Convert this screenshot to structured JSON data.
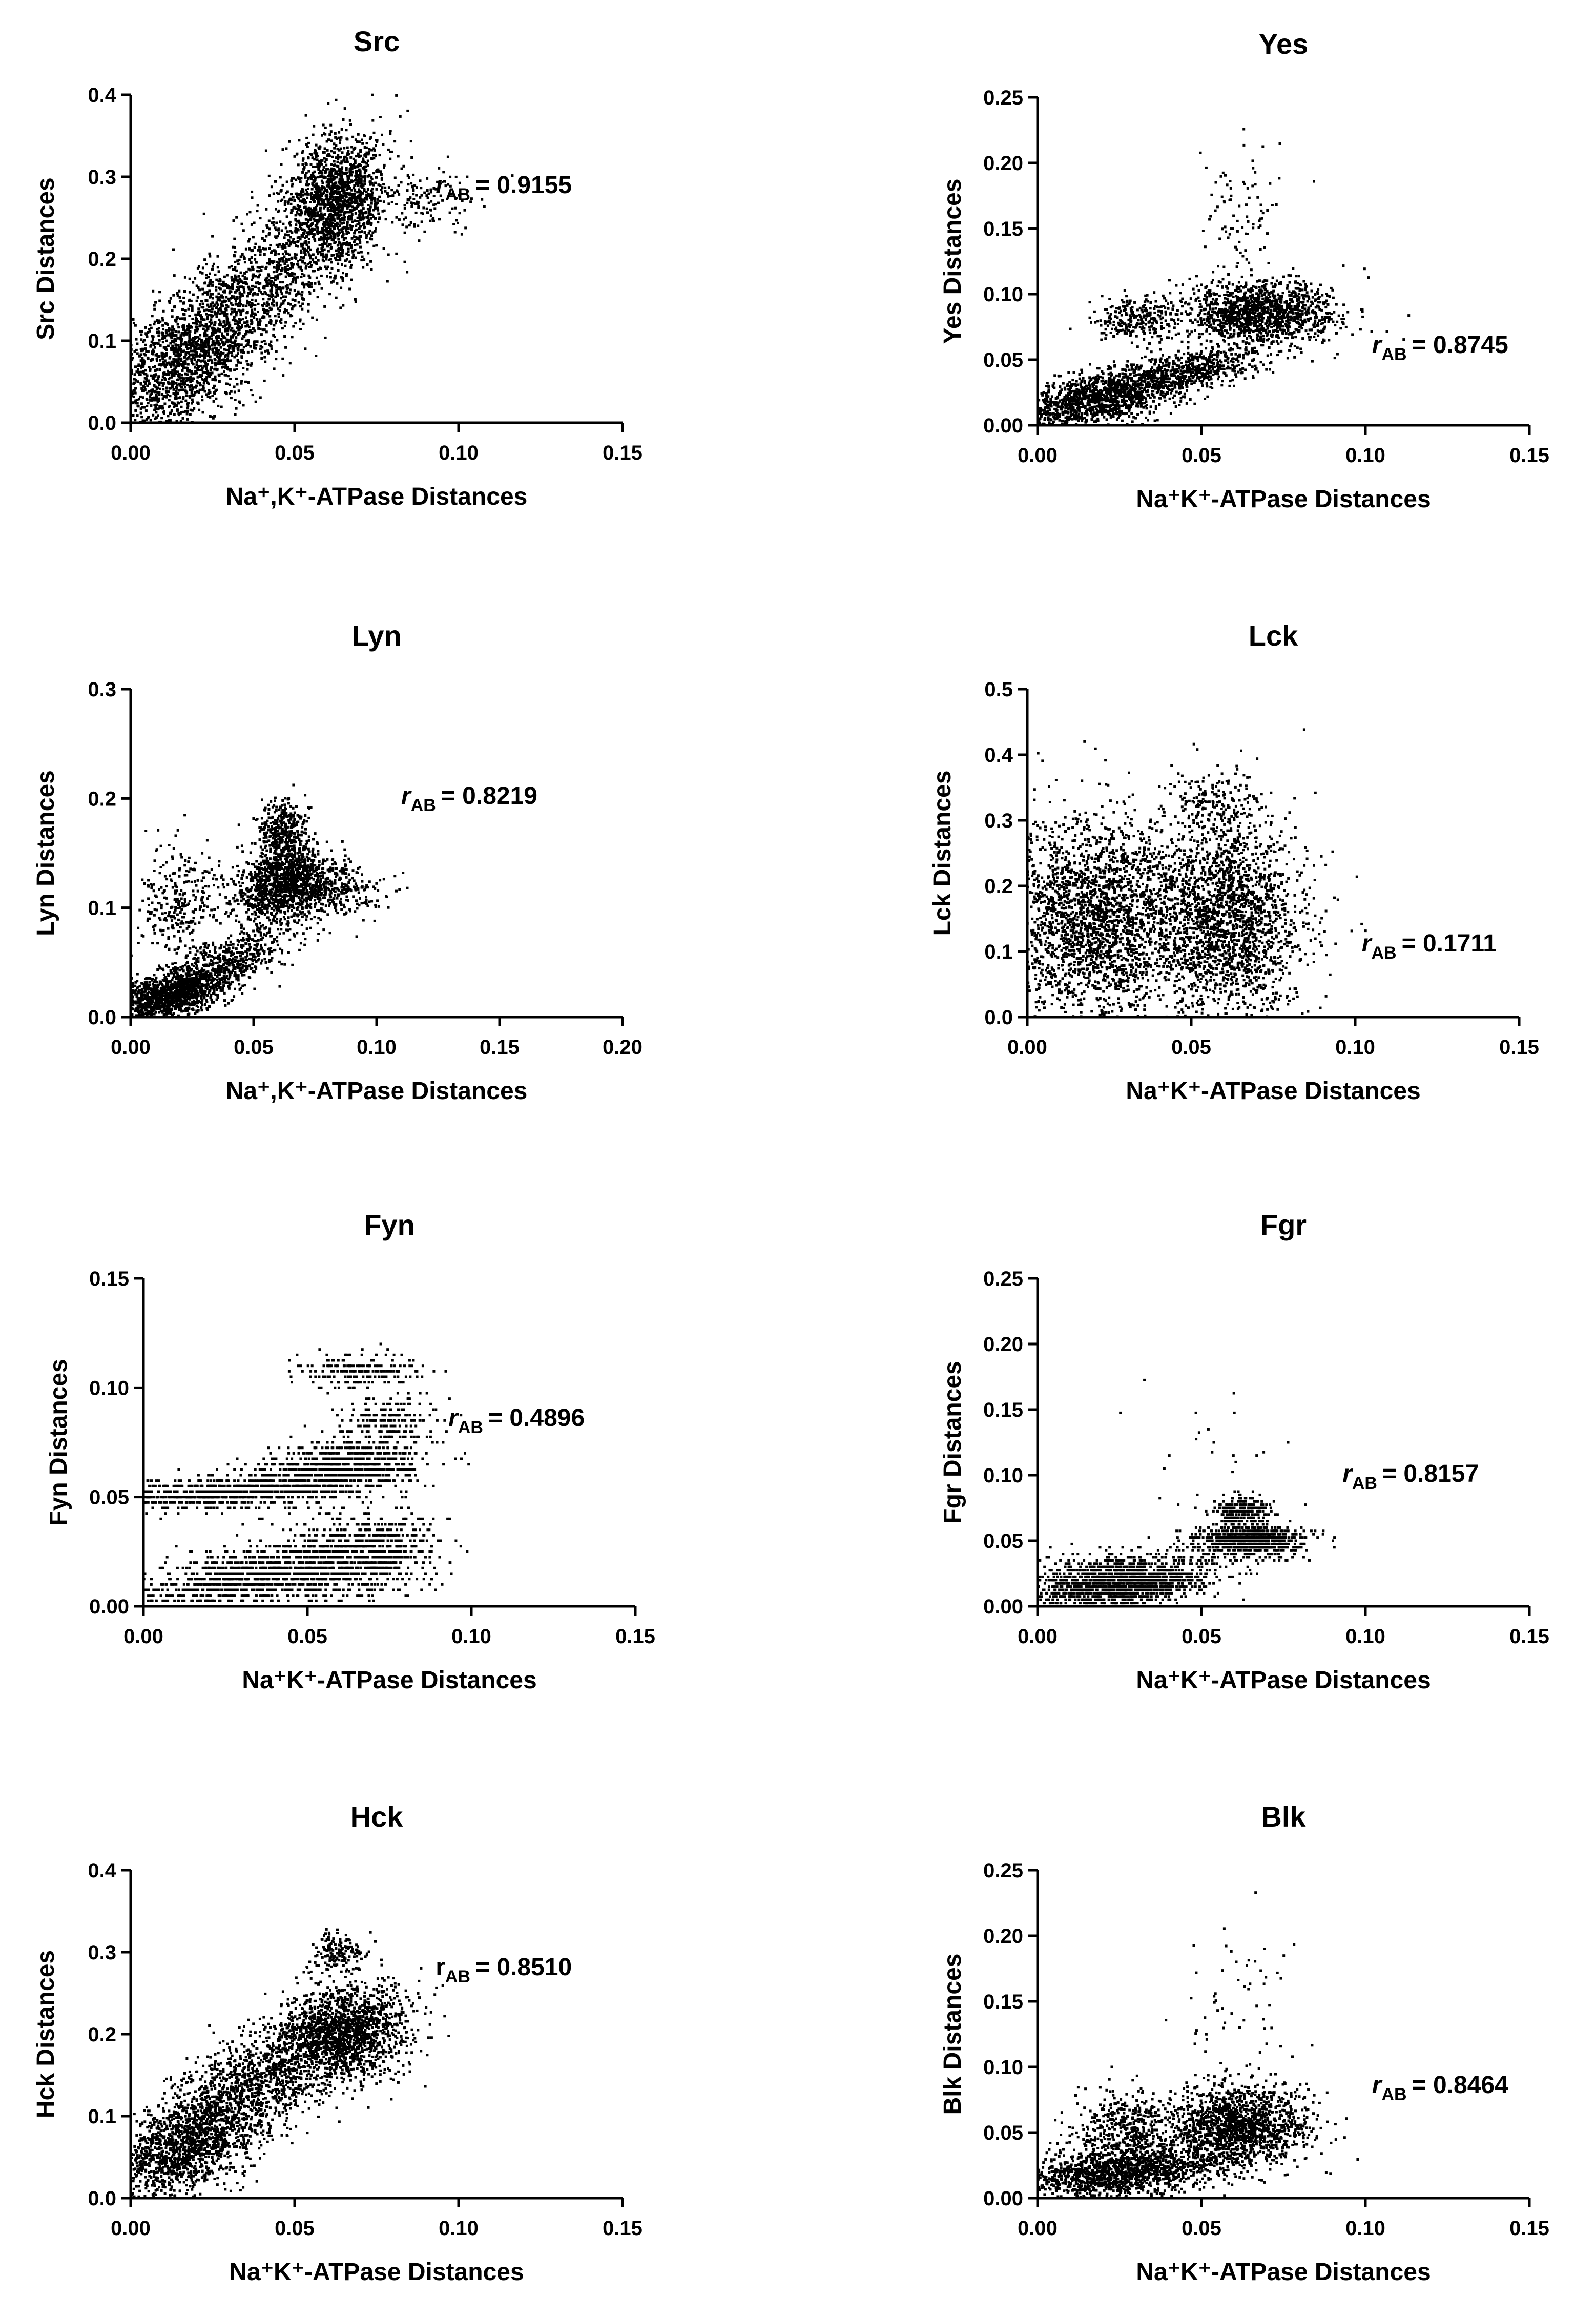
{
  "chart_data": [
    {
      "type": "scatter",
      "title": "Src",
      "xlabel": "Na⁺,K⁺-ATPase Distances",
      "ylabel": "Src Distances",
      "xlim": [
        0,
        0.15
      ],
      "ylim": [
        0,
        0.4
      ],
      "xticks": [
        "0.00",
        "0.05",
        "0.10",
        "0.15"
      ],
      "yticks": [
        "0.0",
        "0.1",
        "0.2",
        "0.3",
        "0.4"
      ],
      "correlation": {
        "symbol": "r",
        "subscript": "AB",
        "value": "= 0.9155",
        "italic": true
      },
      "grid": false,
      "clusters": [
        {
          "cx": 0.018,
          "cy": 0.08,
          "sx": 0.014,
          "sy": 0.05,
          "n": 1800,
          "corr": 0.6
        },
        {
          "cx": 0.04,
          "cy": 0.17,
          "sx": 0.012,
          "sy": 0.04,
          "n": 600,
          "corr": 0.5
        },
        {
          "cx": 0.062,
          "cy": 0.27,
          "sx": 0.008,
          "sy": 0.04,
          "n": 1600,
          "corr": 0.2
        },
        {
          "cx": 0.09,
          "cy": 0.27,
          "sx": 0.008,
          "sy": 0.02,
          "n": 120,
          "corr": 0
        }
      ]
    },
    {
      "type": "scatter",
      "title": "Yes",
      "xlabel": "Na⁺K⁺-ATPase Distances",
      "ylabel": "Yes Distances",
      "xlim": [
        0,
        0.15
      ],
      "ylim": [
        0,
        0.25
      ],
      "xticks": [
        "0.00",
        "0.05",
        "0.10",
        "0.15"
      ],
      "yticks": [
        "0.00",
        "0.05",
        "0.10",
        "0.15",
        "0.20",
        "0.25"
      ],
      "correlation": {
        "symbol": "r",
        "subscript": "AB",
        "value": "= 0.8745",
        "italic": true
      },
      "grid": false,
      "clusters": [
        {
          "cx": 0.018,
          "cy": 0.02,
          "sx": 0.012,
          "sy": 0.012,
          "n": 1200,
          "corr": 0.5
        },
        {
          "cx": 0.045,
          "cy": 0.04,
          "sx": 0.012,
          "sy": 0.01,
          "n": 600,
          "corr": 0.6
        },
        {
          "cx": 0.03,
          "cy": 0.08,
          "sx": 0.006,
          "sy": 0.008,
          "n": 250,
          "corr": 0
        },
        {
          "cx": 0.068,
          "cy": 0.085,
          "sx": 0.012,
          "sy": 0.012,
          "n": 1300,
          "corr": 0
        },
        {
          "cx": 0.062,
          "cy": 0.16,
          "sx": 0.006,
          "sy": 0.03,
          "n": 90,
          "corr": 0
        }
      ]
    },
    {
      "type": "scatter",
      "title": "Lyn",
      "xlabel": "Na⁺,K⁺-ATPase Distances",
      "ylabel": "Lyn Distances",
      "xlim": [
        0,
        0.2
      ],
      "ylim": [
        0,
        0.3
      ],
      "xticks": [
        "0.00",
        "0.05",
        "0.10",
        "0.15",
        "0.20"
      ],
      "yticks": [
        "0.0",
        "0.1",
        "0.2",
        "0.3"
      ],
      "correlation": {
        "symbol": "r",
        "subscript": "AB",
        "value": "= 0.8219",
        "italic": true
      },
      "grid": false,
      "clusters": [
        {
          "cx": 0.015,
          "cy": 0.02,
          "sx": 0.012,
          "sy": 0.012,
          "n": 1200,
          "corr": 0.5
        },
        {
          "cx": 0.04,
          "cy": 0.05,
          "sx": 0.012,
          "sy": 0.015,
          "n": 500,
          "corr": 0.6
        },
        {
          "cx": 0.02,
          "cy": 0.1,
          "sx": 0.008,
          "sy": 0.03,
          "n": 300,
          "corr": 0
        },
        {
          "cx": 0.063,
          "cy": 0.12,
          "sx": 0.01,
          "sy": 0.018,
          "n": 1200,
          "corr": 0.2
        },
        {
          "cx": 0.062,
          "cy": 0.17,
          "sx": 0.005,
          "sy": 0.015,
          "n": 350,
          "corr": 0
        },
        {
          "cx": 0.085,
          "cy": 0.115,
          "sx": 0.01,
          "sy": 0.01,
          "n": 200,
          "corr": 0
        }
      ]
    },
    {
      "type": "scatter",
      "title": "Lck",
      "xlabel": "Na⁺K⁺-ATPase Distances",
      "ylabel": "Lck Distances",
      "xlim": [
        0,
        0.15
      ],
      "ylim": [
        0,
        0.5
      ],
      "xticks": [
        "0.00",
        "0.05",
        "0.10",
        "0.15"
      ],
      "yticks": [
        "0.0",
        "0.1",
        "0.2",
        "0.3",
        "0.4",
        "0.5"
      ],
      "correlation": {
        "symbol": "r",
        "subscript": "AB",
        "value": "= 0.1711",
        "italic": true
      },
      "grid": false,
      "clusters": [
        {
          "cx": 0.02,
          "cy": 0.15,
          "sx": 0.014,
          "sy": 0.08,
          "n": 2200,
          "corr": 0
        },
        {
          "cx": 0.06,
          "cy": 0.15,
          "sx": 0.012,
          "sy": 0.08,
          "n": 2200,
          "corr": 0
        },
        {
          "cx": 0.058,
          "cy": 0.33,
          "sx": 0.006,
          "sy": 0.02,
          "n": 120,
          "corr": 0
        }
      ]
    },
    {
      "type": "scatter",
      "title": "Fyn",
      "xlabel": "Na⁺K⁺-ATPase Distances",
      "ylabel": "Fyn Distances",
      "xlim": [
        0,
        0.15
      ],
      "ylim": [
        0,
        0.15
      ],
      "xticks": [
        "0.00",
        "0.05",
        "0.10",
        "0.15"
      ],
      "yticks": [
        "0.00",
        "0.05",
        "0.10",
        "0.15"
      ],
      "correlation": {
        "symbol": "r",
        "subscript": "AB",
        "value": "= 0.4896",
        "italic": true
      },
      "grid": false,
      "quantize": 0.0025,
      "clusters": [
        {
          "cx": 0.03,
          "cy": 0.012,
          "sx": 0.016,
          "sy": 0.008,
          "n": 1000,
          "corr": 0.5
        },
        {
          "cx": 0.065,
          "cy": 0.022,
          "sx": 0.012,
          "sy": 0.01,
          "n": 900,
          "corr": 0.3
        },
        {
          "cx": 0.025,
          "cy": 0.052,
          "sx": 0.018,
          "sy": 0.004,
          "n": 700,
          "corr": 0.3
        },
        {
          "cx": 0.06,
          "cy": 0.063,
          "sx": 0.012,
          "sy": 0.006,
          "n": 800,
          "corr": 0.2
        },
        {
          "cx": 0.075,
          "cy": 0.085,
          "sx": 0.008,
          "sy": 0.006,
          "n": 200,
          "corr": 0
        },
        {
          "cx": 0.065,
          "cy": 0.108,
          "sx": 0.01,
          "sy": 0.004,
          "n": 180,
          "corr": 0
        }
      ]
    },
    {
      "type": "scatter",
      "title": "Fgr",
      "xlabel": "Na⁺K⁺-ATPase Distances",
      "ylabel": "Fgr Distances",
      "xlim": [
        0,
        0.15
      ],
      "ylim": [
        0,
        0.25
      ],
      "xticks": [
        "0.00",
        "0.05",
        "0.10",
        "0.15"
      ],
      "yticks": [
        "0.00",
        "0.05",
        "0.10",
        "0.15",
        "0.20",
        "0.25"
      ],
      "correlation": {
        "symbol": "r",
        "subscript": "AB",
        "value": "= 0.8157",
        "italic": true
      },
      "grid": false,
      "quantize": 0.0025,
      "clusters": [
        {
          "cx": 0.025,
          "cy": 0.018,
          "sx": 0.014,
          "sy": 0.01,
          "n": 1600,
          "corr": 0.3
        },
        {
          "cx": 0.065,
          "cy": 0.05,
          "sx": 0.008,
          "sy": 0.006,
          "n": 800,
          "corr": 0
        },
        {
          "cx": 0.062,
          "cy": 0.072,
          "sx": 0.005,
          "sy": 0.006,
          "n": 250,
          "corr": 0
        },
        {
          "cx": 0.05,
          "cy": 0.13,
          "sx": 0.02,
          "sy": 0.04,
          "n": 25,
          "corr": 0
        }
      ]
    },
    {
      "type": "scatter",
      "title": "Hck",
      "xlabel": "Na⁺K⁺-ATPase Distances",
      "ylabel": "Hck Distances",
      "xlim": [
        0,
        0.15
      ],
      "ylim": [
        0,
        0.4
      ],
      "xticks": [
        "0.00",
        "0.05",
        "0.10",
        "0.15"
      ],
      "yticks": [
        "0.0",
        "0.1",
        "0.2",
        "0.3",
        "0.4"
      ],
      "correlation": {
        "symbol": "r",
        "subscript": "AB",
        "value": "= 0.8510",
        "italic": false
      },
      "grid": false,
      "clusters": [
        {
          "cx": 0.018,
          "cy": 0.07,
          "sx": 0.014,
          "sy": 0.04,
          "n": 1800,
          "corr": 0.6
        },
        {
          "cx": 0.04,
          "cy": 0.15,
          "sx": 0.012,
          "sy": 0.035,
          "n": 700,
          "corr": 0.5
        },
        {
          "cx": 0.065,
          "cy": 0.2,
          "sx": 0.01,
          "sy": 0.03,
          "n": 1600,
          "corr": 0.2
        },
        {
          "cx": 0.063,
          "cy": 0.3,
          "sx": 0.004,
          "sy": 0.012,
          "n": 150,
          "corr": 0
        }
      ]
    },
    {
      "type": "scatter",
      "title": "Blk",
      "xlabel": "Na⁺K⁺-ATPase Distances",
      "ylabel": "Blk Distances",
      "xlim": [
        0,
        0.15
      ],
      "ylim": [
        0,
        0.25
      ],
      "xticks": [
        "0.00",
        "0.05",
        "0.10",
        "0.15"
      ],
      "yticks": [
        "0.00",
        "0.05",
        "0.10",
        "0.15",
        "0.20",
        "0.25"
      ],
      "correlation": {
        "symbol": "r",
        "subscript": "AB",
        "value": "= 0.8464",
        "italic": true
      },
      "grid": false,
      "clusters": [
        {
          "cx": 0.025,
          "cy": 0.02,
          "sx": 0.016,
          "sy": 0.01,
          "n": 1500,
          "corr": 0.3
        },
        {
          "cx": 0.028,
          "cy": 0.055,
          "sx": 0.008,
          "sy": 0.012,
          "n": 400,
          "corr": 0
        },
        {
          "cx": 0.062,
          "cy": 0.055,
          "sx": 0.01,
          "sy": 0.015,
          "n": 1400,
          "corr": 0
        },
        {
          "cx": 0.06,
          "cy": 0.14,
          "sx": 0.01,
          "sy": 0.04,
          "n": 60,
          "corr": 0
        }
      ]
    }
  ]
}
